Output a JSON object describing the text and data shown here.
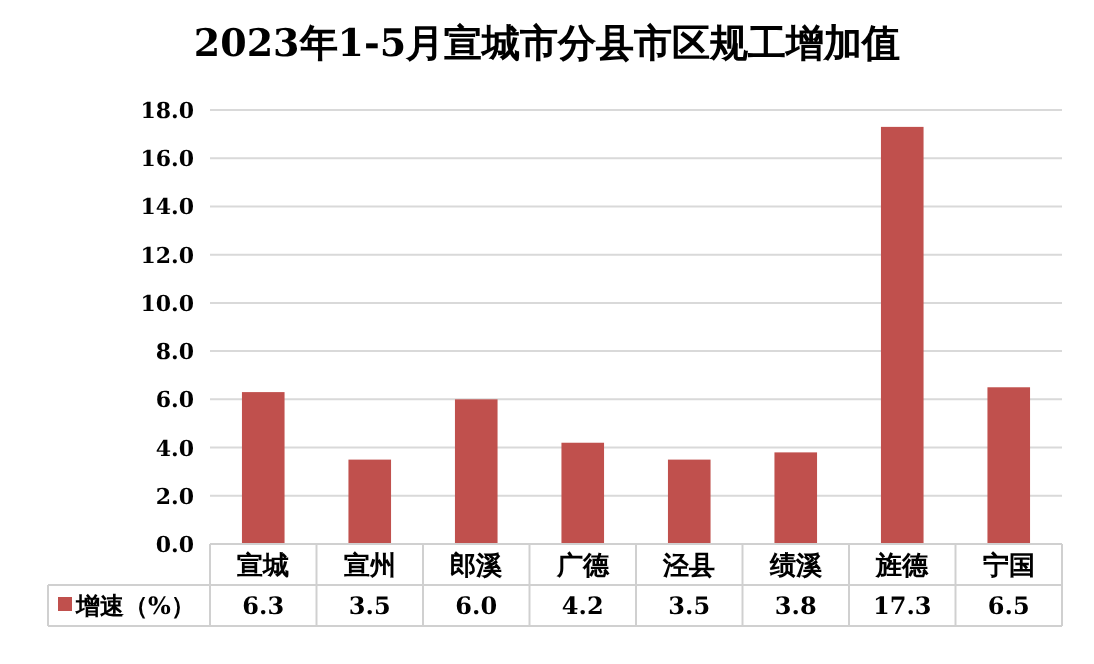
{
  "chart_data": {
    "type": "bar",
    "title": "2023年1-5月宣城市分县市区规工增加值",
    "categories": [
      "宣城",
      "宣州",
      "郎溪",
      "广德",
      "泾县",
      "绩溪",
      "旌德",
      "宁国"
    ],
    "series": [
      {
        "name": "增速（%）",
        "color": "#c0504d",
        "values": [
          6.3,
          3.5,
          6.0,
          4.2,
          3.5,
          3.8,
          17.3,
          6.5
        ],
        "value_labels": [
          "6.3",
          "3.5",
          "6.0",
          "4.2",
          "3.5",
          "3.8",
          "17.3",
          "6.5"
        ]
      }
    ],
    "ylim": [
      0,
      18
    ],
    "yticks": [
      {
        "value": 0,
        "label": "0.0"
      },
      {
        "value": 2,
        "label": "2.0"
      },
      {
        "value": 4,
        "label": "4.0"
      },
      {
        "value": 6,
        "label": "6.0"
      },
      {
        "value": 8,
        "label": "8.0"
      },
      {
        "value": 10,
        "label": "10.0"
      },
      {
        "value": 12,
        "label": "12.0"
      },
      {
        "value": 14,
        "label": "14.0"
      },
      {
        "value": 16,
        "label": "16.0"
      },
      {
        "value": 18,
        "label": "18.0"
      }
    ],
    "grid": "y",
    "legend": "bottom"
  }
}
